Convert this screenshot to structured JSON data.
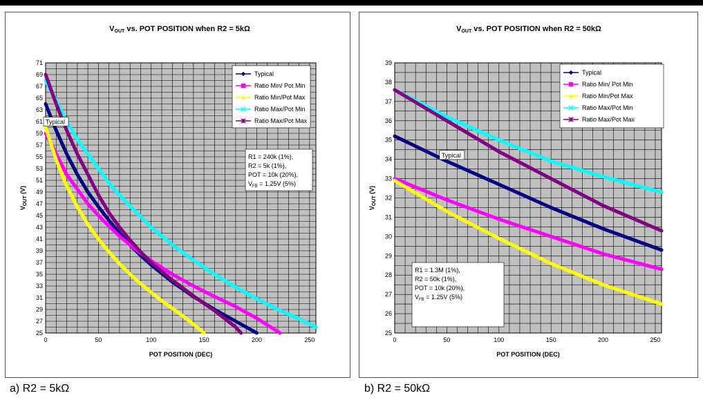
{
  "captions": [
    "a)  R2 = 5kΩ",
    "b)  R2 = 50kΩ"
  ],
  "series_styles": [
    {
      "color": "#000080",
      "marker": "diamond"
    },
    {
      "color": "#ff00ff",
      "marker": "square"
    },
    {
      "color": "#ffff00",
      "marker": "triangle"
    },
    {
      "color": "#00ffff",
      "marker": "x"
    },
    {
      "color": "#800080",
      "marker": "star"
    }
  ],
  "chart_data": [
    {
      "type": "line",
      "title": "V",
      "title_sub": "OUT",
      "title_rest": " vs. POT POSITION when R2 = 5kΩ",
      "xlabel": "POT POSITION (DEC)",
      "ylabel": "V",
      "ylabel_sub": "OUT",
      "ylabel_rest": " (V)",
      "xlim": [
        0,
        256
      ],
      "ylim": [
        25,
        71
      ],
      "xticks": [
        0,
        50,
        100,
        150,
        200,
        250
      ],
      "yticks": [
        25,
        27,
        29,
        31,
        33,
        35,
        37,
        39,
        41,
        43,
        45,
        47,
        49,
        51,
        53,
        55,
        57,
        59,
        61,
        63,
        65,
        67,
        69,
        71
      ],
      "grid": true,
      "legend_position": "top-right",
      "series": [
        {
          "name": "Typical",
          "x": [
            0,
            10,
            20,
            30,
            40,
            50,
            60,
            70,
            80,
            90,
            100,
            120,
            140,
            160,
            180,
            200
          ],
          "values": [
            64,
            59.5,
            55.5,
            52,
            49,
            46.5,
            44.2,
            42,
            40,
            38.2,
            36.6,
            33.7,
            31.2,
            29,
            27,
            25
          ]
        },
        {
          "name": "Ratio Min/ Pot Min",
          "x": [
            0,
            10,
            20,
            30,
            40,
            50,
            60,
            70,
            80,
            90,
            100,
            120,
            140,
            160,
            180,
            200,
            222
          ],
          "values": [
            59,
            55.5,
            52,
            49.5,
            47,
            45,
            43.2,
            41.5,
            40,
            38.6,
            37.3,
            35,
            33,
            31.2,
            29.5,
            27.5,
            25
          ]
        },
        {
          "name": "Ratio Min/Pot Max",
          "x": [
            0,
            10,
            20,
            30,
            40,
            50,
            60,
            70,
            80,
            90,
            100,
            110,
            120,
            130,
            140,
            150
          ],
          "values": [
            60,
            54.5,
            50,
            46.5,
            43.5,
            41,
            38.8,
            36.8,
            35,
            33.4,
            31.9,
            30.5,
            29.2,
            27.9,
            26.5,
            25
          ]
        },
        {
          "name": "Ratio Max/Pot Min",
          "x": [
            0,
            10,
            20,
            30,
            40,
            50,
            60,
            70,
            80,
            90,
            100,
            120,
            140,
            160,
            180,
            200,
            220,
            240,
            256
          ],
          "values": [
            68,
            64.5,
            61,
            58,
            55.5,
            53,
            50.5,
            48.5,
            46.6,
            44.8,
            43,
            40,
            37.4,
            35,
            32.8,
            30.8,
            29,
            27.4,
            26
          ]
        },
        {
          "name": "Ratio Max/Pot Max",
          "x": [
            0,
            10,
            20,
            30,
            40,
            50,
            60,
            70,
            80,
            90,
            100,
            120,
            140,
            160,
            180,
            185
          ],
          "values": [
            69,
            64,
            59.5,
            55.5,
            52,
            48.5,
            45.5,
            43,
            40.8,
            38.8,
            37,
            34,
            31.3,
            28.8,
            26,
            25
          ]
        }
      ],
      "annotations": [
        {
          "text": "Typical",
          "x": 0,
          "y": 60
        },
        {
          "lines": [
            "R1 = 240k (1%),",
            "R2 = 5k (1%),",
            "POT = 10k (20%),",
            "V|FB| = 1.25V (5%)"
          ]
        }
      ]
    },
    {
      "type": "line",
      "title": "V",
      "title_sub": "OUT",
      "title_rest": " vs. POT POSITION when R2 = 50kΩ",
      "xlabel": "POT POSITION (DEC)",
      "ylabel": "V",
      "ylabel_sub": "OUT",
      "ylabel_rest": " (V)",
      "xlim": [
        0,
        256
      ],
      "ylim": [
        25,
        39
      ],
      "xticks": [
        0,
        50,
        100,
        150,
        200,
        250
      ],
      "yticks": [
        25,
        26,
        27,
        28,
        29,
        30,
        31,
        32,
        33,
        34,
        35,
        36,
        37,
        38,
        39
      ],
      "grid": true,
      "legend_position": "top-right",
      "series": [
        {
          "name": "Typical",
          "x": [
            0,
            50,
            100,
            150,
            200,
            256
          ],
          "values": [
            35.2,
            33.9,
            32.7,
            31.5,
            30.4,
            29.3
          ]
        },
        {
          "name": "Ratio Min/ Pot Min",
          "x": [
            0,
            50,
            100,
            150,
            200,
            256
          ],
          "values": [
            33,
            31.9,
            30.9,
            30,
            29.1,
            28.3
          ]
        },
        {
          "name": "Ratio Min/Pot Max",
          "x": [
            0,
            50,
            100,
            150,
            200,
            256
          ],
          "values": [
            32.9,
            31.3,
            29.9,
            28.6,
            27.5,
            26.5
          ]
        },
        {
          "name": "Ratio Max/Pot Min",
          "x": [
            0,
            50,
            100,
            150,
            200,
            256
          ],
          "values": [
            37.6,
            36.2,
            35,
            33.9,
            33.1,
            32.3
          ]
        },
        {
          "name": "Ratio Max/Pot Max",
          "x": [
            0,
            50,
            100,
            150,
            200,
            256
          ],
          "values": [
            37.6,
            36,
            34.4,
            33,
            31.6,
            30.3
          ]
        }
      ],
      "annotations": [
        {
          "text": "Typical",
          "x": 43,
          "y": 34.1
        },
        {
          "lines": [
            "R1 = 1.3M (1%),",
            "R2 = 50k (1%),",
            "POT = 10k (20%),",
            "V|FB| = 1.25V (5%)"
          ]
        }
      ]
    }
  ]
}
